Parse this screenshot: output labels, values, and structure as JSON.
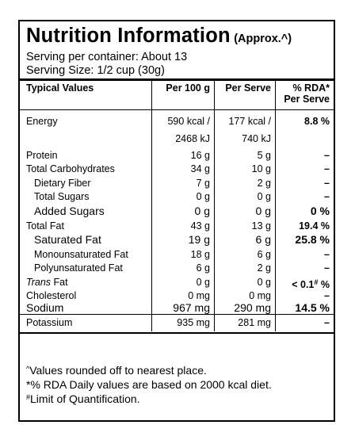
{
  "header": {
    "title": "Nutrition Information",
    "title_note": "(Approx.^)",
    "serving_per_container": "Serving per container: About 13",
    "serving_size": "Serving Size: 1/2 cup (30g)"
  },
  "columns": {
    "name": "Typical Values",
    "per100": "Per 100 g",
    "perserve": "Per Serve",
    "rda_line1": "% RDA*",
    "rda_line2": "Per Serve"
  },
  "rows": [
    {
      "name": "Energy",
      "per100": "590 kcal /",
      "perserve": "177 kcal /",
      "rda": "8.8 %"
    },
    {
      "name": "",
      "per100": "2468 kJ",
      "perserve": "740 kJ",
      "rda": ""
    },
    {
      "name": "Protein",
      "per100": "16 g",
      "perserve": "5 g",
      "rda": "–"
    },
    {
      "name": "Total Carbohydrates",
      "per100": "34 g",
      "perserve": "10 g",
      "rda": "–"
    },
    {
      "name": "Dietary Fiber",
      "per100": "7 g",
      "perserve": "2 g",
      "rda": "–"
    },
    {
      "name": "Total Sugars",
      "per100": "0 g",
      "perserve": "0 g",
      "rda": "–"
    },
    {
      "name": "Added Sugars",
      "per100": "0 g",
      "perserve": "0 g",
      "rda": "0 %"
    },
    {
      "name": "Total Fat",
      "per100": "43 g",
      "perserve": "13 g",
      "rda": "19.4 %"
    },
    {
      "name": "Saturated Fat",
      "per100": "19 g",
      "perserve": "6 g",
      "rda": "25.8 %"
    },
    {
      "name": "Monounsaturated Fat",
      "per100": "18 g",
      "perserve": "6 g",
      "rda": "–"
    },
    {
      "name": "Polyunsaturated Fat",
      "per100": "6 g",
      "perserve": "2 g",
      "rda": "–"
    },
    {
      "name": "Trans",
      "name_suffix": " Fat",
      "per100": "0 g",
      "perserve": "0 g",
      "rda": "< 0.1",
      "rda_sup": "#",
      "rda_suffix": " %"
    },
    {
      "name": "Cholesterol",
      "per100": "0 mg",
      "perserve": "0 mg",
      "rda": "–"
    },
    {
      "name": "Sodium",
      "per100": "967 mg",
      "perserve": "290 mg",
      "rda": "14.5 %"
    },
    {
      "name": "Potassium",
      "per100": "935 mg",
      "perserve": "281 mg",
      "rda": "–"
    }
  ],
  "footnotes": {
    "rounding_mark": "^",
    "rounding": "Values rounded off to nearest place.",
    "rda": "*% RDA Daily values are based on 2000 kcal diet.",
    "loq_mark": "#",
    "loq": "Limit of Quantification."
  }
}
